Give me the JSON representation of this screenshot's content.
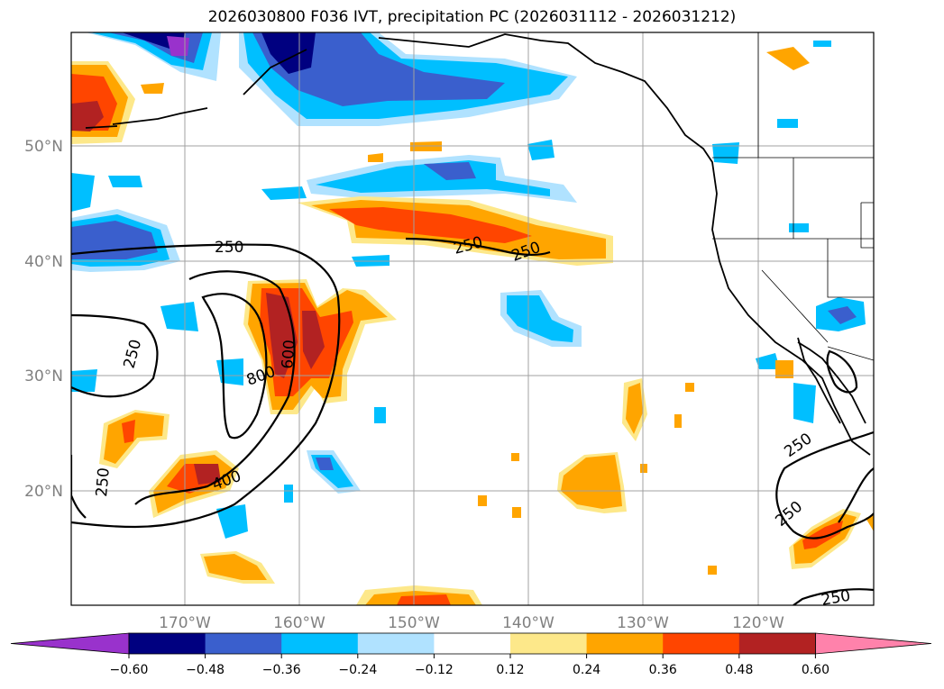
{
  "title": "2026030800 F036 IVT, precipitation PC (2026031112 - 2026031212)",
  "map": {
    "lon_labels": [
      "170°W",
      "160°W",
      "150°W",
      "140°W",
      "130°W",
      "120°W"
    ],
    "lat_labels": [
      "50°N",
      "40°N",
      "30°N",
      "20°N"
    ],
    "contour_labels": [
      "250",
      "250",
      "250",
      "250",
      "250",
      "250",
      "250",
      "600",
      "800",
      "400"
    ]
  },
  "colorbar": {
    "ticks": [
      "−0.60",
      "−0.48",
      "−0.36",
      "−0.24",
      "−0.12",
      "0.12",
      "0.24",
      "0.36",
      "0.48",
      "0.60"
    ],
    "colors": [
      "#9932cc",
      "#000080",
      "#3a5fcd",
      "#00bfff",
      "#b0e2ff",
      "#ffffff",
      "#fde88a",
      "#ffa500",
      "#ff4500",
      "#b22222",
      "#ff82ab"
    ]
  },
  "colors": {
    "neg_strong": "#000080",
    "neg_mid": "#3a5fcd",
    "neg_light": "#00bfff",
    "neg_pale": "#b0e2ff",
    "pos_pale": "#fde88a",
    "pos_light": "#ffa500",
    "pos_mid": "#ff4500",
    "pos_strong": "#b22222",
    "extreme_neg": "#9932cc"
  }
}
